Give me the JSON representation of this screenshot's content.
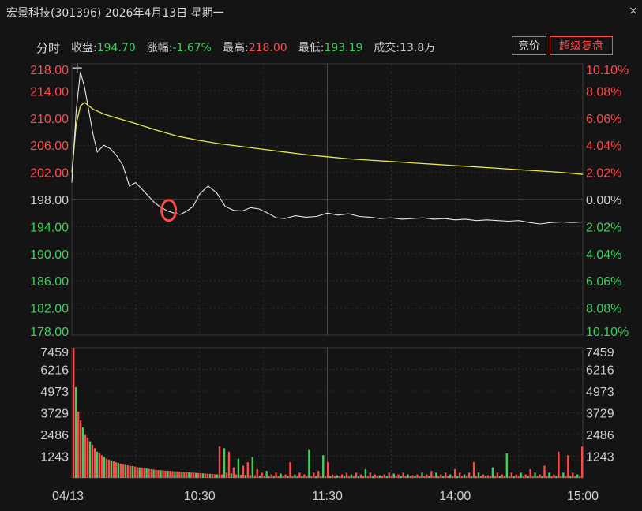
{
  "window": {
    "title": "宏景科技(301396) 2026年4月13日 星期一",
    "close_glyph": "×"
  },
  "infobar": {
    "mode_label": "分时",
    "close_label": "收盘:",
    "close_value": "194.70",
    "change_label": "涨幅:",
    "change_value": "-1.67%",
    "high_label": "最高:",
    "high_value": "218.00",
    "low_label": "最低:",
    "low_value": "193.19",
    "volume_label": "成交:",
    "volume_value": "13.8万",
    "auction_button": "竞价",
    "replay_button": "超级复盘"
  },
  "colors": {
    "up": "#ff4a4a",
    "down": "#3fcf5e",
    "price_line": "#e8e8e8",
    "avg_line": "#e6e64a",
    "highlight_circle": "#ff4a4a"
  },
  "icons": [
    "close-icon",
    "crosshair-icon",
    "highlight-circle-icon"
  ],
  "chart_data": {
    "type": "line",
    "prev_close": 198.0,
    "ylim": [
      178.0,
      218.0
    ],
    "price_ticks_left": [
      "218.00",
      "214.00",
      "210.00",
      "206.00",
      "202.00",
      "198.00",
      "194.00",
      "190.00",
      "186.00",
      "182.00",
      "178.00"
    ],
    "pct_ticks_right": [
      "10.10%",
      "8.08%",
      "6.06%",
      "4.04%",
      "2.02%",
      "0.00%",
      "2.02%",
      "4.04%",
      "6.06%",
      "8.08%",
      "10.10%"
    ],
    "volume_ticks": [
      "7459",
      "6216",
      "4973",
      "3729",
      "2486",
      "1243"
    ],
    "volume_max": 7459,
    "x_ticks": [
      "04/13",
      "10:30",
      "11:30",
      "14:00",
      "15:00"
    ],
    "session_minutes": 240,
    "series": [
      {
        "x": [
          0,
          2,
          4,
          6,
          8,
          10,
          12,
          15,
          18,
          21,
          24,
          27,
          30,
          33,
          36,
          39,
          42,
          45,
          48,
          51,
          54,
          57,
          60,
          64,
          68,
          72,
          76,
          80,
          84,
          88,
          92,
          96,
          100,
          105,
          110,
          115,
          120,
          125,
          130,
          135,
          140,
          145,
          150,
          155,
          160,
          165,
          170,
          175,
          180,
          185,
          190,
          195,
          200,
          205,
          210,
          215,
          220,
          225,
          230,
          235,
          240
        ],
        "values": [
          200.5,
          211.0,
          216.8,
          214.5,
          211.0,
          207.5,
          205.0,
          206.0,
          205.5,
          204.5,
          203.0,
          200.0,
          200.5,
          199.5,
          198.5,
          197.5,
          196.8,
          196.3,
          196.0,
          195.8,
          196.3,
          197.0,
          198.8,
          200.0,
          199.0,
          197.0,
          196.4,
          196.3,
          196.8,
          196.6,
          196.0,
          195.3,
          195.2,
          195.6,
          195.4,
          195.5,
          196.0,
          195.7,
          195.9,
          195.5,
          195.4,
          195.2,
          195.3,
          195.1,
          195.2,
          195.3,
          195.1,
          195.2,
          195.0,
          195.1,
          194.9,
          195.0,
          194.9,
          194.8,
          194.9,
          194.6,
          194.4,
          194.6,
          194.7,
          194.6,
          194.7
        ]
      },
      {
        "x": [
          0,
          2,
          4,
          6,
          8,
          10,
          15,
          20,
          30,
          40,
          50,
          60,
          70,
          80,
          90,
          100,
          110,
          120,
          130,
          140,
          150,
          160,
          170,
          180,
          190,
          200,
          210,
          220,
          230,
          240
        ],
        "values": [
          202.0,
          209.0,
          211.8,
          212.3,
          211.8,
          211.3,
          210.6,
          210.1,
          209.2,
          208.2,
          207.3,
          206.7,
          206.2,
          205.8,
          205.4,
          205.0,
          204.6,
          204.3,
          204.0,
          203.8,
          203.6,
          203.4,
          203.2,
          203.0,
          202.8,
          202.6,
          202.4,
          202.2,
          202.0,
          201.7
        ]
      }
    ],
    "volume_up": [
      7459,
      5200,
      3800,
      3300,
      2900,
      2500,
      2300,
      2100,
      1900,
      1700,
      1500,
      1400,
      1300,
      1200,
      1100,
      1050,
      1000,
      950,
      900,
      860,
      820,
      780,
      750,
      720,
      700,
      680,
      650,
      620,
      600,
      580,
      560,
      540,
      520,
      500,
      480,
      460,
      450,
      440,
      430,
      420,
      410,
      400,
      390,
      380,
      370,
      360,
      350,
      340,
      330,
      320,
      310,
      300,
      290,
      280,
      270,
      260,
      250,
      240,
      230,
      220,
      210,
      200,
      1800,
      200,
      1700,
      300,
      1500,
      250,
      600,
      200,
      1100,
      180,
      700,
      170,
      900,
      160,
      1200,
      150,
      500,
      140,
      300,
      130,
      400,
      120,
      200,
      110,
      300,
      100,
      250,
      100,
      200,
      100,
      900,
      100,
      200,
      100,
      300,
      100,
      200,
      100,
      1600,
      100,
      300,
      100,
      400,
      100,
      1300,
      100,
      900,
      100,
      200,
      100,
      150,
      100,
      200,
      100,
      300,
      100,
      200,
      100,
      300,
      100,
      200,
      100,
      500,
      100,
      300,
      100,
      200,
      100,
      150,
      100,
      200,
      100,
      300,
      100,
      250,
      100,
      200,
      100,
      300,
      100,
      200,
      100,
      150,
      100,
      200,
      100,
      300,
      100,
      200,
      100,
      400,
      100,
      300,
      100,
      200,
      100,
      300,
      100,
      200,
      100,
      500,
      100,
      300,
      100,
      200,
      100,
      300,
      100,
      900,
      100,
      300,
      100,
      200,
      100,
      150,
      100,
      600,
      100,
      300,
      100,
      200,
      100,
      1400,
      100,
      300,
      100,
      200,
      100,
      300,
      100,
      200,
      100,
      500,
      100,
      300,
      100,
      200,
      100,
      700,
      100,
      300,
      100,
      200,
      100,
      1500,
      100,
      300,
      100,
      1300,
      100,
      300,
      100,
      200,
      100,
      1800
    ]
  }
}
